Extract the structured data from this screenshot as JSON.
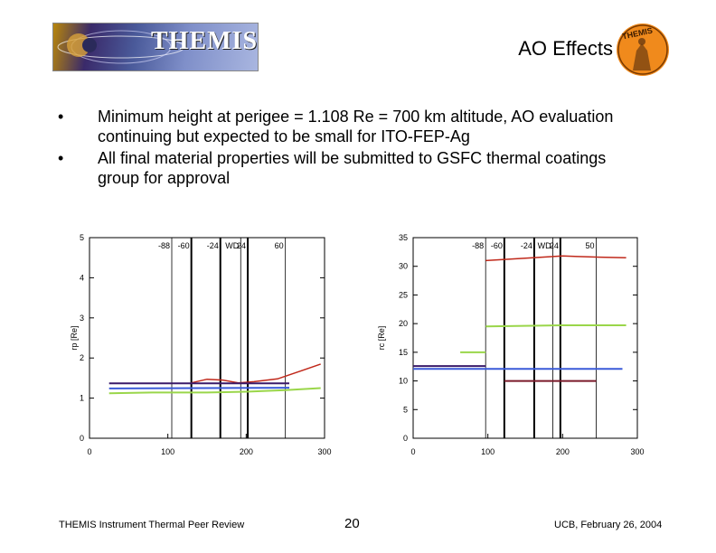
{
  "header": {
    "banner_text": "THEMIS",
    "title": "AO Effects",
    "logo_text": "THEMIS"
  },
  "bullets": [
    "Minimum height at perigee = 1.108 Re = 700 km altitude, AO evaluation continuing but expected to be small for ITO-FEP-Ag",
    "All final material properties will be submitted to GSFC thermal coatings group for approval"
  ],
  "footer": {
    "left": "THEMIS Instrument Thermal Peer Review",
    "page": "20",
    "right": "UCB, February 26, 2004"
  },
  "colors": {
    "red": "#c0281a",
    "purple": "#3a1a6a",
    "green": "#9ad64a",
    "blue": "#3a5ad8",
    "maroon": "#7a1a2a",
    "orange": "#f08a1c"
  },
  "chart_data": [
    {
      "type": "line",
      "xlim": [
        0,
        300
      ],
      "ylim": [
        0,
        5
      ],
      "xticks": [
        "0",
        "100",
        "200",
        "300"
      ],
      "yticks": [
        "0",
        "1",
        "2",
        "3",
        "4",
        "5"
      ],
      "ylabel": "rp [Re]",
      "xlabel": "",
      "top_labels": [
        "-88",
        "-60",
        "-24",
        "WD",
        "24",
        "60"
      ],
      "vlines": [
        {
          "x": 105,
          "bold": false
        },
        {
          "x": 130,
          "bold": true
        },
        {
          "x": 167,
          "bold": true
        },
        {
          "x": 193,
          "bold": false
        },
        {
          "x": 202,
          "bold": true
        },
        {
          "x": 250,
          "bold": false
        }
      ],
      "series": [
        {
          "color": "red",
          "points": [
            [
              130,
              1.38
            ],
            [
              150,
              1.47
            ],
            [
              170,
              1.45
            ],
            [
              190,
              1.38
            ],
            [
              210,
              1.41
            ],
            [
              240,
              1.48
            ],
            [
              270,
              1.68
            ],
            [
              295,
              1.85
            ]
          ]
        },
        {
          "color": "purple",
          "points": [
            [
              25,
              1.37
            ],
            [
              255,
              1.37
            ]
          ]
        },
        {
          "color": "blue",
          "points": [
            [
              25,
              1.24
            ],
            [
              255,
              1.26
            ]
          ]
        },
        {
          "color": "green",
          "points": [
            [
              25,
              1.12
            ],
            [
              80,
              1.14
            ],
            [
              150,
              1.14
            ],
            [
              200,
              1.16
            ],
            [
              250,
              1.2
            ],
            [
              295,
              1.25
            ]
          ]
        }
      ]
    },
    {
      "type": "line",
      "xlim": [
        0,
        300
      ],
      "ylim": [
        0,
        35
      ],
      "xticks": [
        "0",
        "100",
        "200",
        "300"
      ],
      "yticks": [
        "0",
        "5",
        "10",
        "15",
        "20",
        "25",
        "30",
        "35"
      ],
      "ylabel": "rc [Re]",
      "xlabel": "",
      "top_labels": [
        "-88",
        "-60",
        "-24",
        "WD",
        "24",
        "50"
      ],
      "vlines": [
        {
          "x": 97,
          "bold": false
        },
        {
          "x": 122,
          "bold": true
        },
        {
          "x": 162,
          "bold": true
        },
        {
          "x": 187,
          "bold": false
        },
        {
          "x": 197,
          "bold": true
        },
        {
          "x": 245,
          "bold": false
        }
      ],
      "series": [
        {
          "color": "red",
          "points": [
            [
              97,
              31.0
            ],
            [
              150,
              31.4
            ],
            [
              200,
              31.8
            ],
            [
              250,
              31.6
            ],
            [
              285,
              31.5
            ]
          ]
        },
        {
          "color": "green",
          "points": [
            [
              97,
              19.5
            ],
            [
              200,
              19.7
            ],
            [
              285,
              19.7
            ]
          ]
        },
        {
          "color": "green",
          "points": [
            [
              63,
              15.0
            ],
            [
              97,
              15.0
            ]
          ]
        },
        {
          "color": "purple",
          "points": [
            [
              0,
              12.6
            ],
            [
              97,
              12.6
            ]
          ]
        },
        {
          "color": "blue",
          "points": [
            [
              0,
              12.1
            ],
            [
              280,
              12.1
            ]
          ]
        },
        {
          "color": "maroon",
          "points": [
            [
              122,
              10.0
            ],
            [
              245,
              10.0
            ]
          ]
        }
      ]
    }
  ]
}
